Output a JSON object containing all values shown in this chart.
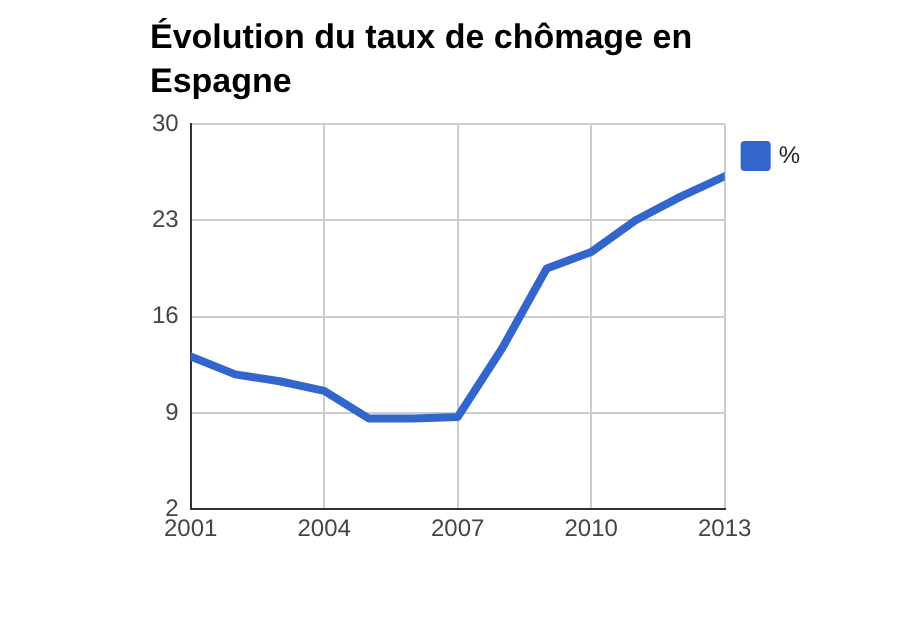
{
  "chart_data": {
    "type": "line",
    "title": "Évolution du taux de chômage en Espagne",
    "x": [
      2001,
      2002,
      2003,
      2004,
      2005,
      2006,
      2007,
      2008,
      2009,
      2010,
      2011,
      2012,
      2013
    ],
    "series": [
      {
        "name": "%",
        "color": "#3366cc",
        "values": [
          13.1,
          11.8,
          11.3,
          10.6,
          8.6,
          8.6,
          8.7,
          13.7,
          19.5,
          20.7,
          23.0,
          24.7,
          26.2
        ]
      }
    ],
    "xlim": [
      2001,
      2013
    ],
    "xticks": [
      2001,
      2004,
      2007,
      2010,
      2013
    ],
    "ylim": [
      2,
      30
    ],
    "yticks": [
      2,
      9,
      16,
      23,
      30
    ],
    "grid": true,
    "legend": "top right",
    "marker": "none",
    "line_style": "solid"
  }
}
